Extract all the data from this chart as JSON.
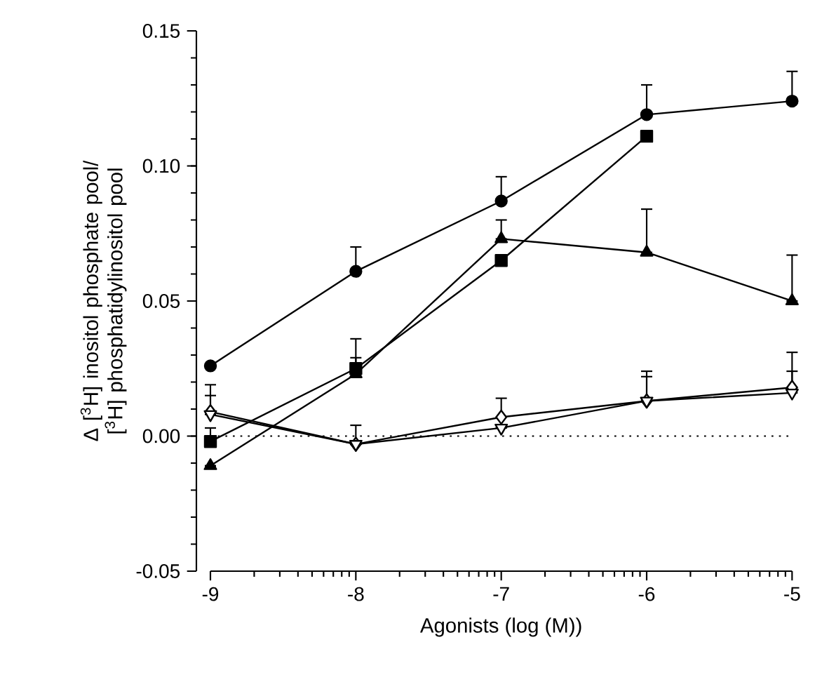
{
  "chart_data": {
    "type": "line",
    "xlabel": "Agonists (log (M))",
    "ylabel": "Δ [$^{3}$H] inositol phosphate pool/ [$^{3}$H] phosphatidylinositol pool",
    "x": [
      -9,
      -8,
      -7,
      -6,
      -5
    ],
    "series": [
      {
        "color": "#000000",
        "marker": "circle",
        "values": [
          0.026,
          0.061,
          0.087,
          0.119,
          0.124
        ],
        "errors": [
          null,
          [
            0.061,
            0.07
          ],
          [
            0.087,
            0.096
          ],
          [
            0.119,
            0.13
          ],
          [
            0.124,
            0.135
          ]
        ]
      },
      {
        "color": "#000000",
        "marker": "square",
        "values": [
          -0.002,
          0.025,
          0.065,
          0.111,
          null
        ],
        "errors": [
          [
            -0.002,
            0.003
          ],
          [
            0.025,
            0.036
          ],
          null,
          null,
          null
        ]
      },
      {
        "color": "#000000",
        "marker": "triangle",
        "values": [
          -0.011,
          0.023,
          0.073,
          0.068,
          0.05
        ],
        "errors": [
          null,
          [
            0.023,
            0.029
          ],
          [
            0.073,
            0.08
          ],
          [
            0.068,
            0.084
          ],
          [
            0.05,
            0.067
          ]
        ]
      },
      {
        "color": "#000000",
        "marker": "diamond",
        "values": [
          0.009,
          -0.003,
          0.007,
          0.013,
          0.018
        ],
        "errors": [
          [
            0.009,
            0.019
          ],
          [
            -0.003,
            0.004
          ],
          [
            0.007,
            0.014
          ],
          [
            0.013,
            0.024
          ],
          [
            0.018,
            0.031
          ]
        ]
      },
      {
        "color": "#000000",
        "marker": "triangle-down",
        "values": [
          0.008,
          -0.003,
          0.003,
          0.013,
          0.016
        ],
        "errors": [
          [
            0.008,
            0.015
          ],
          null,
          null,
          [
            0.013,
            0.022
          ],
          [
            0.016,
            0.024
          ]
        ]
      }
    ],
    "xlim": [
      -9,
      -5
    ],
    "xticks": [
      -9,
      -8,
      -7,
      -6,
      -5
    ],
    "ylim": [
      -0.05,
      0.15
    ],
    "yticks": [
      -0.05,
      {
        "value": 0,
        "label": "0.00"
      },
      0.05,
      {
        "value": 0.1,
        "label": "0.10"
      },
      0.15
    ],
    "ref_lines": [
      {
        "axis": "y",
        "value": 0,
        "line_style": "dotted"
      }
    ],
    "line_style": "solid",
    "grid": false
  }
}
